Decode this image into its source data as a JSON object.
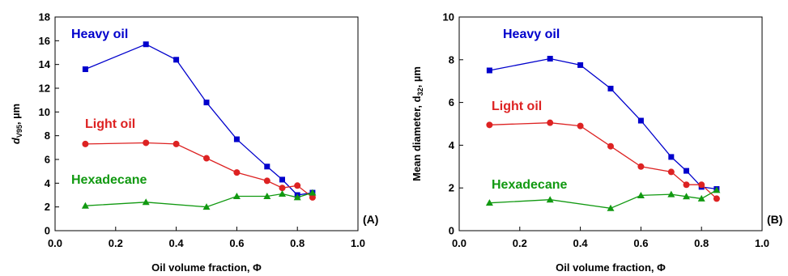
{
  "chart_data": [
    {
      "type": "line",
      "panel_label": "(A)",
      "xlabel": "Oil volume fraction, Φ",
      "ylabel_main": "d",
      "ylabel_sub": "V95",
      "ylabel_unit": ", µm",
      "xlim": [
        0.0,
        1.0
      ],
      "ylim": [
        0,
        18
      ],
      "xticks": [
        0.0,
        0.2,
        0.4,
        0.6,
        0.8,
        1.0
      ],
      "xtick_labels": [
        "0.0",
        "0.2",
        "0.4",
        "0.6",
        "0.8",
        "1.0"
      ],
      "yticks": [
        0,
        2,
        4,
        6,
        8,
        10,
        12,
        14,
        16,
        18
      ],
      "ytick_labels": [
        "0",
        "2",
        "4",
        "6",
        "8",
        "10",
        "12",
        "14",
        "16",
        "18"
      ],
      "grid": false,
      "series": [
        {
          "name": "Heavy oil",
          "color": "#0000cc",
          "marker": "square",
          "x": [
            0.1,
            0.3,
            0.4,
            0.5,
            0.6,
            0.7,
            0.75,
            0.8,
            0.85
          ],
          "y": [
            13.6,
            15.7,
            14.4,
            10.8,
            7.7,
            5.4,
            4.3,
            3.0,
            3.2
          ]
        },
        {
          "name": "Light oil",
          "color": "#dd2222",
          "marker": "circle",
          "x": [
            0.1,
            0.3,
            0.4,
            0.5,
            0.6,
            0.7,
            0.75,
            0.8,
            0.85
          ],
          "y": [
            7.3,
            7.4,
            7.3,
            6.1,
            4.9,
            4.2,
            3.6,
            3.8,
            2.8
          ]
        },
        {
          "name": "Hexadecane",
          "color": "#119911",
          "marker": "triangle",
          "x": [
            0.1,
            0.3,
            0.5,
            0.6,
            0.7,
            0.75,
            0.8,
            0.85
          ],
          "y": [
            2.1,
            2.4,
            2.0,
            2.9,
            2.9,
            3.1,
            2.8,
            3.2
          ]
        }
      ]
    },
    {
      "type": "line",
      "panel_label": "(B)",
      "xlabel": "Oil volume fraction, Φ",
      "ylabel_main": "Mean diameter, d",
      "ylabel_sub": "32",
      "ylabel_unit": ", µm",
      "xlim": [
        0.0,
        1.0
      ],
      "ylim": [
        0,
        10
      ],
      "xticks": [
        0.0,
        0.2,
        0.4,
        0.6,
        0.8,
        1.0
      ],
      "xtick_labels": [
        "0.0",
        "0.2",
        "0.4",
        "0.6",
        "0.8",
        "1.0"
      ],
      "yticks": [
        0,
        2,
        4,
        6,
        8,
        10
      ],
      "ytick_labels": [
        "0",
        "2",
        "4",
        "6",
        "8",
        "10"
      ],
      "grid": false,
      "series": [
        {
          "name": "Heavy oil",
          "color": "#0000cc",
          "marker": "square",
          "x": [
            0.1,
            0.3,
            0.4,
            0.5,
            0.6,
            0.7,
            0.75,
            0.8,
            0.85
          ],
          "y": [
            7.5,
            8.05,
            7.75,
            6.65,
            5.15,
            3.45,
            2.8,
            2.05,
            1.95
          ]
        },
        {
          "name": "Light oil",
          "color": "#dd2222",
          "marker": "circle",
          "x": [
            0.1,
            0.3,
            0.4,
            0.5,
            0.6,
            0.7,
            0.75,
            0.8,
            0.85
          ],
          "y": [
            4.95,
            5.05,
            4.9,
            3.95,
            3.0,
            2.75,
            2.15,
            2.15,
            1.5
          ]
        },
        {
          "name": "Hexadecane",
          "color": "#119911",
          "marker": "triangle",
          "x": [
            0.1,
            0.3,
            0.5,
            0.6,
            0.7,
            0.75,
            0.8,
            0.85
          ],
          "y": [
            1.3,
            1.45,
            1.05,
            1.65,
            1.7,
            1.6,
            1.5,
            1.9
          ]
        }
      ]
    }
  ]
}
